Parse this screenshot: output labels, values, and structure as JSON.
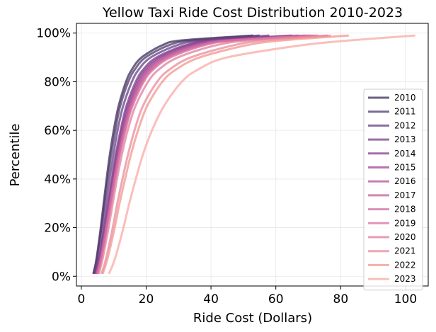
{
  "chart_data": {
    "type": "line",
    "title": "Yellow Taxi Ride Cost Distribution 2010-2023",
    "xlabel": "Ride Cost (Dollars)",
    "ylabel": "Percentile",
    "xlim": [
      -1.5,
      107
    ],
    "ylim": [
      -4,
      104
    ],
    "xticks": [
      0,
      20,
      40,
      60,
      80,
      100
    ],
    "xtick_labels": [
      "0",
      "20",
      "40",
      "60",
      "80",
      "100"
    ],
    "yticks": [
      0,
      20,
      40,
      60,
      80,
      100
    ],
    "ytick_labels": [
      "0%",
      "20%",
      "40%",
      "60%",
      "80%",
      "100%"
    ],
    "grid": true,
    "legend_position": "right",
    "y_percentiles": [
      1,
      5,
      10,
      20,
      30,
      40,
      50,
      60,
      70,
      80,
      85,
      90,
      95,
      97,
      99
    ],
    "series": [
      {
        "name": "2010",
        "color": "#3b2c55",
        "x": [
          3.7,
          4.4,
          5.0,
          6.0,
          6.9,
          7.8,
          8.8,
          10.0,
          11.5,
          13.8,
          15.6,
          18.6,
          25.0,
          31.0,
          53.0
        ]
      },
      {
        "name": "2011",
        "color": "#51396f",
        "x": [
          3.8,
          4.5,
          5.1,
          6.2,
          7.1,
          8.1,
          9.2,
          10.5,
          12.0,
          14.5,
          16.5,
          19.8,
          27.0,
          34.0,
          55.0
        ]
      },
      {
        "name": "2012",
        "color": "#634282",
        "x": [
          4.1,
          4.8,
          5.5,
          6.6,
          7.6,
          8.7,
          9.9,
          11.2,
          12.9,
          15.6,
          17.7,
          21.4,
          29.5,
          37.0,
          58.0
        ]
      },
      {
        "name": "2013",
        "color": "#7a3e8a",
        "x": [
          4.4,
          5.1,
          5.9,
          7.1,
          8.2,
          9.4,
          10.6,
          12.1,
          13.9,
          16.8,
          19.1,
          23.2,
          32.0,
          40.5,
          65.0
        ]
      },
      {
        "name": "2014",
        "color": "#873f92",
        "x": [
          4.5,
          5.3,
          6.0,
          7.3,
          8.4,
          9.6,
          10.9,
          12.4,
          14.3,
          17.3,
          19.7,
          24.0,
          33.0,
          42.0,
          67.0
        ]
      },
      {
        "name": "2015",
        "color": "#a04796",
        "x": [
          4.6,
          5.4,
          6.2,
          7.5,
          8.6,
          9.9,
          11.2,
          12.8,
          14.7,
          17.8,
          20.3,
          24.8,
          34.2,
          43.5,
          69.0
        ]
      },
      {
        "name": "2016",
        "color": "#b3569a",
        "x": [
          4.7,
          5.5,
          6.3,
          7.6,
          8.8,
          10.1,
          11.4,
          13.0,
          15.0,
          18.2,
          20.8,
          25.5,
          35.2,
          44.5,
          70.0
        ]
      },
      {
        "name": "2017",
        "color": "#c15f9e",
        "x": [
          4.8,
          5.6,
          6.4,
          7.7,
          8.9,
          10.2,
          11.6,
          13.2,
          15.3,
          18.6,
          21.3,
          26.2,
          36.0,
          45.5,
          71.0
        ]
      },
      {
        "name": "2018",
        "color": "#cd6aa1",
        "x": [
          4.9,
          5.7,
          6.5,
          7.8,
          9.0,
          10.3,
          11.7,
          13.4,
          15.5,
          18.9,
          21.7,
          26.8,
          37.0,
          46.5,
          72.0
        ]
      },
      {
        "name": "2019",
        "color": "#d870a0",
        "x": [
          5.0,
          5.8,
          6.6,
          7.9,
          9.2,
          10.5,
          11.9,
          13.6,
          15.8,
          19.3,
          22.2,
          27.5,
          38.0,
          47.5,
          73.0
        ]
      },
      {
        "name": "2020",
        "color": "#e07c9c",
        "x": [
          5.4,
          6.2,
          7.0,
          8.4,
          9.7,
          11.0,
          12.5,
          14.3,
          16.7,
          20.6,
          23.9,
          29.8,
          41.5,
          52.0,
          76.0
        ]
      },
      {
        "name": "2021",
        "color": "#ea8a9a",
        "x": [
          6.2,
          7.2,
          8.1,
          9.7,
          11.1,
          12.7,
          14.4,
          16.4,
          19.0,
          23.4,
          27.2,
          33.8,
          47.0,
          57.0,
          77.0
        ]
      },
      {
        "name": "2022",
        "color": "#f1968e",
        "x": [
          6.6,
          7.6,
          8.6,
          10.3,
          11.8,
          13.5,
          15.3,
          17.5,
          20.3,
          25.0,
          29.2,
          36.5,
          51.0,
          62.0,
          82.5
        ]
      },
      {
        "name": "2023",
        "color": "#f8aaa4",
        "x": [
          8.5,
          9.8,
          11.0,
          13.0,
          14.8,
          16.8,
          19.0,
          21.8,
          25.5,
          31.0,
          36.0,
          45.0,
          68.0,
          83.0,
          103.0
        ]
      }
    ]
  }
}
